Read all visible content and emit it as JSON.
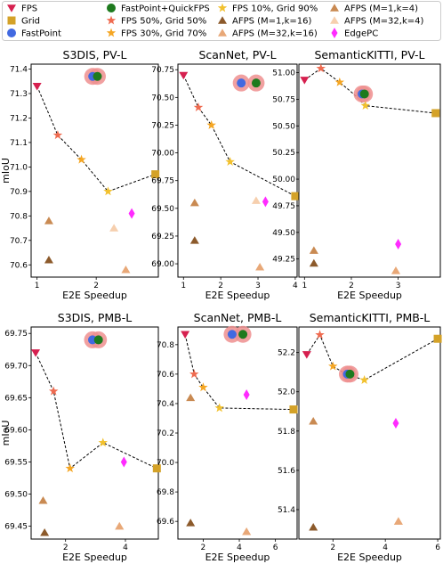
{
  "legend": [
    {
      "key": "fps",
      "label": "FPS",
      "marker": "tri_down",
      "color": "#d6204f"
    },
    {
      "key": "fpq",
      "label": "FastPoint+QuickFPS",
      "marker": "circle",
      "color": "#1e7a1e"
    },
    {
      "key": "fps10",
      "label": "FPS 10%, Grid 90%",
      "marker": "star",
      "color": "#f2c12e"
    },
    {
      "key": "afps14",
      "label": "AFPS (M=1,k=4)",
      "marker": "triangle",
      "color": "#c98a52"
    },
    {
      "key": "grid",
      "label": "Grid",
      "marker": "square",
      "color": "#d4a228"
    },
    {
      "key": "fps50",
      "label": "FPS 50%, Grid 50%",
      "marker": "star",
      "color": "#ef6b50"
    },
    {
      "key": "afps116",
      "label": "AFPS (M=1,k=16)",
      "marker": "triangle",
      "color": "#8c5a2b"
    },
    {
      "key": "afps324",
      "label": "AFPS (M=32,k=4)",
      "marker": "triangle",
      "color": "#f6cfae"
    },
    {
      "key": "fastpoint",
      "label": "FastPoint",
      "marker": "circle",
      "color": "#4169e1"
    },
    {
      "key": "fps30",
      "label": "FPS 30%, Grid 70%",
      "marker": "star",
      "color": "#f5a623"
    },
    {
      "key": "afps3216",
      "label": "AFPS (M=32,k=16)",
      "marker": "triangle",
      "color": "#e8a878"
    },
    {
      "key": "edgepc",
      "label": "EdgePC",
      "marker": "diamond",
      "color": "#ff2bff"
    }
  ],
  "chart_data": [
    {
      "type": "scatter",
      "title": "S3DIS, PV-L",
      "xlabel": "E2E Speedup",
      "ylabel": "mIoU",
      "xlim": [
        0.9,
        3.05
      ],
      "ylim": [
        70.55,
        71.42
      ],
      "xticks": [
        1,
        2
      ],
      "yticks": [
        70.6,
        70.7,
        70.8,
        70.9,
        71.0,
        71.1,
        71.2,
        71.3,
        71.4
      ],
      "tick_labels_y": [
        "70.6",
        "70.7",
        "70.8",
        "70.9",
        "71.0",
        "71.1",
        "71.2",
        "71.3",
        "71.4"
      ],
      "line": [
        [
          1.0,
          71.33
        ],
        [
          1.35,
          71.13
        ],
        [
          1.75,
          71.03
        ],
        [
          2.2,
          70.9
        ],
        [
          3.0,
          70.97
        ]
      ],
      "points": [
        {
          "s": "fps",
          "x": 1.0,
          "y": 71.33
        },
        {
          "s": "fps50",
          "x": 1.35,
          "y": 71.13
        },
        {
          "s": "fps30",
          "x": 1.75,
          "y": 71.03
        },
        {
          "s": "fps10",
          "x": 2.2,
          "y": 70.9
        },
        {
          "s": "grid",
          "x": 3.0,
          "y": 70.97
        },
        {
          "s": "afps14",
          "x": 1.2,
          "y": 70.78
        },
        {
          "s": "afps116",
          "x": 1.2,
          "y": 70.62
        },
        {
          "s": "afps324",
          "x": 2.3,
          "y": 70.75
        },
        {
          "s": "afps3216",
          "x": 2.5,
          "y": 70.58
        },
        {
          "s": "edgepc",
          "x": 2.6,
          "y": 70.81
        },
        {
          "s": "fastpoint",
          "x": 1.94,
          "y": 71.37
        },
        {
          "s": "fpq",
          "x": 2.02,
          "y": 71.37
        }
      ]
    },
    {
      "type": "scatter",
      "title": "ScanNet, PV-L",
      "xlabel": "E2E Speedup",
      "ylabel": "",
      "xlim": [
        0.85,
        4.05
      ],
      "ylim": [
        68.88,
        70.8
      ],
      "xticks": [
        1,
        2,
        3,
        4
      ],
      "yticks": [
        69.0,
        69.25,
        69.5,
        69.75,
        70.0,
        70.25,
        70.5,
        70.75
      ],
      "tick_labels_y": [
        "69.00",
        "69.25",
        "69.50",
        "69.75",
        "70.00",
        "70.25",
        "70.50",
        "70.75"
      ],
      "line": [
        [
          1.0,
          70.7
        ],
        [
          1.4,
          70.41
        ],
        [
          1.75,
          70.25
        ],
        [
          2.25,
          69.92
        ],
        [
          4.0,
          69.61
        ]
      ],
      "points": [
        {
          "s": "fps",
          "x": 1.0,
          "y": 70.7
        },
        {
          "s": "fps50",
          "x": 1.4,
          "y": 70.41
        },
        {
          "s": "fps30",
          "x": 1.75,
          "y": 70.25
        },
        {
          "s": "fps10",
          "x": 2.25,
          "y": 69.92
        },
        {
          "s": "grid",
          "x": 4.0,
          "y": 69.61
        },
        {
          "s": "afps14",
          "x": 1.3,
          "y": 69.55
        },
        {
          "s": "afps116",
          "x": 1.3,
          "y": 69.21
        },
        {
          "s": "afps324",
          "x": 2.95,
          "y": 69.57
        },
        {
          "s": "afps3216",
          "x": 3.05,
          "y": 68.97
        },
        {
          "s": "edgepc",
          "x": 3.2,
          "y": 69.56
        },
        {
          "s": "fastpoint",
          "x": 2.55,
          "y": 70.63
        },
        {
          "s": "fpq",
          "x": 2.95,
          "y": 70.63
        }
      ]
    },
    {
      "type": "scatter",
      "title": "SemanticKITTI, PV-L",
      "xlabel": "E2E Speedup",
      "ylabel": "",
      "xlim": [
        0.88,
        3.9
      ],
      "ylim": [
        49.08,
        51.08
      ],
      "xticks": [
        1,
        2,
        3
      ],
      "yticks": [
        49.25,
        49.5,
        49.75,
        50.0,
        50.25,
        50.5,
        50.75,
        51.0
      ],
      "tick_labels_y": [
        "49.25",
        "49.50",
        "49.75",
        "50.00",
        "50.25",
        "50.50",
        "50.75",
        "51.00"
      ],
      "line": [
        [
          1.0,
          50.93
        ],
        [
          1.35,
          51.04
        ],
        [
          1.75,
          50.91
        ],
        [
          2.05,
          50.8
        ],
        [
          2.3,
          50.69
        ],
        [
          3.8,
          50.62
        ]
      ],
      "points": [
        {
          "s": "fps",
          "x": 1.0,
          "y": 50.93
        },
        {
          "s": "fps50",
          "x": 1.35,
          "y": 51.04
        },
        {
          "s": "fps30",
          "x": 1.75,
          "y": 50.91
        },
        {
          "s": "fps10",
          "x": 2.3,
          "y": 50.69
        },
        {
          "s": "grid",
          "x": 3.8,
          "y": 50.62
        },
        {
          "s": "afps14",
          "x": 1.2,
          "y": 49.33
        },
        {
          "s": "afps116",
          "x": 1.2,
          "y": 49.21
        },
        {
          "s": "afps324",
          "x": 2.95,
          "y": 49.14
        },
        {
          "s": "afps3216",
          "x": 2.95,
          "y": 49.14
        },
        {
          "s": "edgepc",
          "x": 3.0,
          "y": 49.39
        },
        {
          "s": "fastpoint",
          "x": 2.23,
          "y": 50.8
        },
        {
          "s": "fpq",
          "x": 2.28,
          "y": 50.8
        }
      ]
    },
    {
      "type": "scatter",
      "title": "S3DIS, PMB-L",
      "xlabel": "E2E Speedup",
      "ylabel": "mIoU",
      "xlim": [
        0.85,
        5.1
      ],
      "ylim": [
        69.43,
        69.76
      ],
      "xticks": [
        2,
        4
      ],
      "yticks": [
        69.45,
        69.5,
        69.55,
        69.6,
        69.65,
        69.7,
        69.75
      ],
      "tick_labels_y": [
        "69.45",
        "69.50",
        "69.55",
        "69.60",
        "69.65",
        "69.70",
        "69.75"
      ],
      "line": [
        [
          1.0,
          69.72
        ],
        [
          1.6,
          69.66
        ],
        [
          2.15,
          69.54
        ],
        [
          3.25,
          69.58
        ],
        [
          5.05,
          69.54
        ]
      ],
      "points": [
        {
          "s": "fps",
          "x": 1.0,
          "y": 69.72
        },
        {
          "s": "fps50",
          "x": 1.6,
          "y": 69.66
        },
        {
          "s": "fps30",
          "x": 2.15,
          "y": 69.54
        },
        {
          "s": "fps10",
          "x": 3.25,
          "y": 69.58
        },
        {
          "s": "grid",
          "x": 5.05,
          "y": 69.54
        },
        {
          "s": "afps14",
          "x": 1.25,
          "y": 69.49
        },
        {
          "s": "afps116",
          "x": 1.3,
          "y": 69.44
        },
        {
          "s": "afps324",
          "x": 3.8,
          "y": 69.45
        },
        {
          "s": "afps3216",
          "x": 3.8,
          "y": 69.45
        },
        {
          "s": "edgepc",
          "x": 3.95,
          "y": 69.55
        },
        {
          "s": "fastpoint",
          "x": 2.9,
          "y": 69.74
        },
        {
          "s": "fpq",
          "x": 3.1,
          "y": 69.74
        }
      ]
    },
    {
      "type": "scatter",
      "title": "ScanNet, PMB-L",
      "xlabel": "E2E Speedup",
      "ylabel": "",
      "xlim": [
        0.6,
        7.2
      ],
      "ylim": [
        69.48,
        70.92
      ],
      "xticks": [
        2,
        4,
        6
      ],
      "yticks": [
        69.6,
        69.8,
        70.0,
        70.2,
        70.4,
        70.6,
        70.8
      ],
      "tick_labels_y": [
        "69.6",
        "69.8",
        "70.0",
        "70.2",
        "70.4",
        "70.6",
        "70.8"
      ],
      "line": [
        [
          1.0,
          70.87
        ],
        [
          1.5,
          70.6
        ],
        [
          2.0,
          70.51
        ],
        [
          2.9,
          70.37
        ],
        [
          7.0,
          70.36
        ]
      ],
      "points": [
        {
          "s": "fps",
          "x": 1.0,
          "y": 70.87
        },
        {
          "s": "fps50",
          "x": 1.5,
          "y": 70.6
        },
        {
          "s": "fps30",
          "x": 2.0,
          "y": 70.51
        },
        {
          "s": "fps10",
          "x": 2.9,
          "y": 70.37
        },
        {
          "s": "grid",
          "x": 7.0,
          "y": 70.36
        },
        {
          "s": "afps14",
          "x": 1.3,
          "y": 70.44
        },
        {
          "s": "afps116",
          "x": 1.3,
          "y": 69.59
        },
        {
          "s": "afps324",
          "x": 4.4,
          "y": 69.53
        },
        {
          "s": "afps3216",
          "x": 4.4,
          "y": 69.53
        },
        {
          "s": "edgepc",
          "x": 4.4,
          "y": 70.46
        },
        {
          "s": "fastpoint",
          "x": 3.6,
          "y": 70.87
        },
        {
          "s": "fpq",
          "x": 4.2,
          "y": 70.87
        }
      ]
    },
    {
      "type": "scatter",
      "title": "SemanticKITTI, PMB-L",
      "xlabel": "E2E Speedup",
      "ylabel": "",
      "xlim": [
        0.7,
        6.1
      ],
      "ylim": [
        51.25,
        52.33
      ],
      "xticks": [
        2,
        4,
        6
      ],
      "yticks": [
        51.4,
        51.6,
        51.8,
        52.0,
        52.2
      ],
      "tick_labels_y": [
        "51.4",
        "51.6",
        "51.8",
        "52.0",
        "52.2"
      ],
      "line": [
        [
          1.0,
          52.19
        ],
        [
          1.5,
          52.29
        ],
        [
          2.0,
          52.13
        ],
        [
          2.5,
          52.09
        ],
        [
          3.2,
          52.06
        ],
        [
          6.0,
          52.27
        ]
      ],
      "points": [
        {
          "s": "fps",
          "x": 1.0,
          "y": 52.19
        },
        {
          "s": "fps50",
          "x": 1.5,
          "y": 52.29
        },
        {
          "s": "fps30",
          "x": 2.0,
          "y": 52.13
        },
        {
          "s": "fps10",
          "x": 3.2,
          "y": 52.06
        },
        {
          "s": "grid",
          "x": 6.0,
          "y": 52.27
        },
        {
          "s": "afps14",
          "x": 1.25,
          "y": 51.85
        },
        {
          "s": "afps116",
          "x": 1.25,
          "y": 51.31
        },
        {
          "s": "afps324",
          "x": 4.5,
          "y": 51.34
        },
        {
          "s": "afps3216",
          "x": 4.5,
          "y": 51.34
        },
        {
          "s": "edgepc",
          "x": 4.4,
          "y": 51.84
        },
        {
          "s": "fastpoint",
          "x": 2.55,
          "y": 52.09
        },
        {
          "s": "fpq",
          "x": 2.65,
          "y": 52.09
        }
      ]
    }
  ]
}
